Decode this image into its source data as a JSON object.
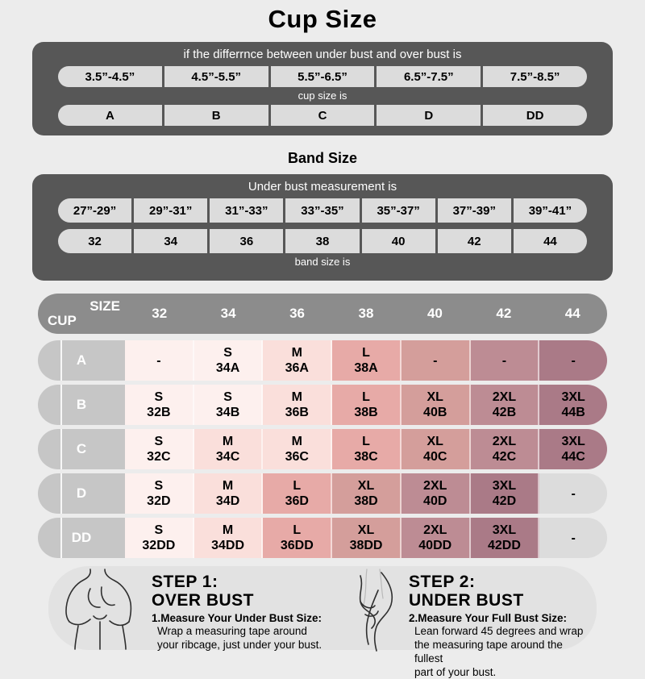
{
  "title": "Cup Size",
  "band_title": "Band Size",
  "palette": {
    "s": "#fdf0ee",
    "m": "#fadfdb",
    "l": "#e7aaa7",
    "xl": "#d49e9b",
    "2xl": "#bd8c94",
    "3xl": "#aa7a87",
    "gray": "#dcdcdc"
  },
  "chart_data": [
    {
      "type": "table",
      "title": "Cup Size",
      "header": "if the differrnce between under bust and over bust is",
      "categories": [
        "3.5”-4.5”",
        "4.5”-5.5”",
        "5.5”-6.5”",
        "6.5”-7.5”",
        "7.5”-8.5”"
      ],
      "subheader": "cup size is",
      "values": [
        "A",
        "B",
        "C",
        "D",
        "DD"
      ]
    },
    {
      "type": "table",
      "title": "Band Size",
      "header": "Under bust measurement is",
      "categories": [
        "27”-29”",
        "29”-31”",
        "31”-33”",
        "33”-35”",
        "35”-37”",
        "37”-39”",
        "39”-41”"
      ],
      "values": [
        "32",
        "34",
        "36",
        "38",
        "40",
        "42",
        "44"
      ],
      "footer": "band size is"
    },
    {
      "type": "table",
      "title": "Size matrix",
      "corner": {
        "top": "SIZE",
        "bottom": "CUP"
      },
      "columns": [
        "32",
        "34",
        "36",
        "38",
        "40",
        "42",
        "44"
      ],
      "rows": [
        {
          "cup": "A",
          "cells": [
            {
              "label": "-",
              "shade": "s"
            },
            {
              "label": "S\n34A",
              "shade": "s"
            },
            {
              "label": "M\n36A",
              "shade": "m"
            },
            {
              "label": "L\n38A",
              "shade": "l"
            },
            {
              "label": "-",
              "shade": "xl"
            },
            {
              "label": "-",
              "shade": "2xl"
            },
            {
              "label": "-",
              "shade": "3xl"
            }
          ]
        },
        {
          "cup": "B",
          "cells": [
            {
              "label": "S\n32B",
              "shade": "s"
            },
            {
              "label": "S\n34B",
              "shade": "s"
            },
            {
              "label": "M\n36B",
              "shade": "m"
            },
            {
              "label": "L\n38B",
              "shade": "l"
            },
            {
              "label": "XL\n40B",
              "shade": "xl"
            },
            {
              "label": "2XL\n42B",
              "shade": "2xl"
            },
            {
              "label": "3XL\n44B",
              "shade": "3xl"
            }
          ]
        },
        {
          "cup": "C",
          "cells": [
            {
              "label": "S\n32C",
              "shade": "s"
            },
            {
              "label": "M\n34C",
              "shade": "m"
            },
            {
              "label": "M\n36C",
              "shade": "m"
            },
            {
              "label": "L\n38C",
              "shade": "l"
            },
            {
              "label": "XL\n40C",
              "shade": "xl"
            },
            {
              "label": "2XL\n42C",
              "shade": "2xl"
            },
            {
              "label": "3XL\n44C",
              "shade": "3xl"
            }
          ]
        },
        {
          "cup": "D",
          "cells": [
            {
              "label": "S\n32D",
              "shade": "s"
            },
            {
              "label": "M\n34D",
              "shade": "m"
            },
            {
              "label": "L\n36D",
              "shade": "l"
            },
            {
              "label": "XL\n38D",
              "shade": "xl"
            },
            {
              "label": "2XL\n40D",
              "shade": "2xl"
            },
            {
              "label": "3XL\n42D",
              "shade": "3xl"
            },
            {
              "label": "-",
              "shade": "gray"
            }
          ]
        },
        {
          "cup": "DD",
          "cells": [
            {
              "label": "S\n32DD",
              "shade": "s"
            },
            {
              "label": "M\n34DD",
              "shade": "m"
            },
            {
              "label": "L\n36DD",
              "shade": "l"
            },
            {
              "label": "XL\n38DD",
              "shade": "xl"
            },
            {
              "label": "2XL\n40DD",
              "shade": "2xl"
            },
            {
              "label": "3XL\n42DD",
              "shade": "3xl"
            },
            {
              "label": "-",
              "shade": "gray"
            }
          ]
        }
      ]
    }
  ],
  "steps": [
    {
      "heading1": "STEP 1:",
      "heading2": "OVER BUST",
      "bold_line": "1.Measure Your Under Bust Size:",
      "body": "Wrap a measuring tape around\nyour ribcage, just under your bust."
    },
    {
      "heading1": "STEP 2:",
      "heading2": "UNDER BUST",
      "bold_line": "2.Measure Your Full Bust Size:",
      "body": "Lean forward 45 degrees and wrap\nthe measuring tape around the fullest\npart of your bust."
    }
  ]
}
